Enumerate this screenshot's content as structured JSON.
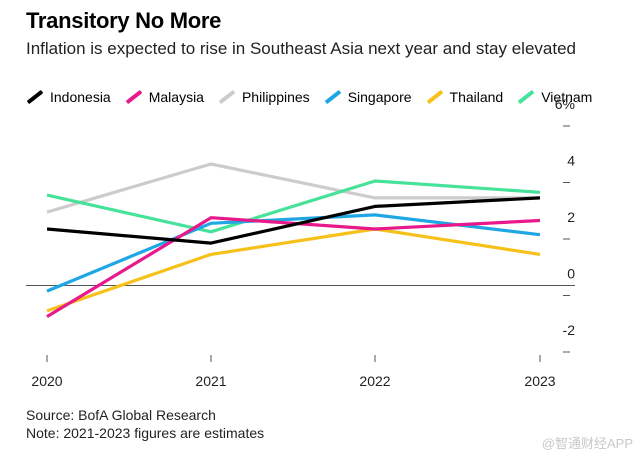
{
  "header": {
    "title": "Transitory No More",
    "subtitle": "Inflation is expected to rise in Southeast Asia next year and stay elevated"
  },
  "chart_data": {
    "type": "line",
    "title": "Transitory No More",
    "subtitle": "Inflation is expected to rise in Southeast Asia next year and stay elevated",
    "x": [
      "2020",
      "2021",
      "2022",
      "2023"
    ],
    "ylim": [
      -2,
      6
    ],
    "yticks": [
      -2,
      0,
      2,
      4,
      6
    ],
    "ytick_labels": [
      "-2",
      "0",
      "2",
      "4",
      "6%"
    ],
    "legend_position": "top",
    "series": [
      {
        "name": "Indonesia",
        "color": "#000000",
        "values": [
          2.0,
          1.5,
          2.8,
          3.1
        ]
      },
      {
        "name": "Malaysia",
        "color": "#e8198b",
        "values": [
          -1.1,
          2.4,
          2.0,
          2.3
        ]
      },
      {
        "name": "Philippines",
        "color": "#cccccc",
        "values": [
          2.6,
          4.3,
          3.1,
          3.1
        ]
      },
      {
        "name": "Singapore",
        "color": "#1ea7e4",
        "values": [
          -0.2,
          2.2,
          2.5,
          1.8
        ]
      },
      {
        "name": "Thailand",
        "color": "#f5c11a",
        "values": [
          -0.9,
          1.1,
          2.0,
          1.1
        ]
      },
      {
        "name": "Vietnam",
        "color": "#47e29a",
        "values": [
          3.2,
          1.9,
          3.7,
          3.3
        ]
      }
    ]
  },
  "footer": {
    "source": "Source: BofA Global Research",
    "note": "Note: 2021-2023 figures are estimates"
  },
  "watermark": "@智通财经APP"
}
